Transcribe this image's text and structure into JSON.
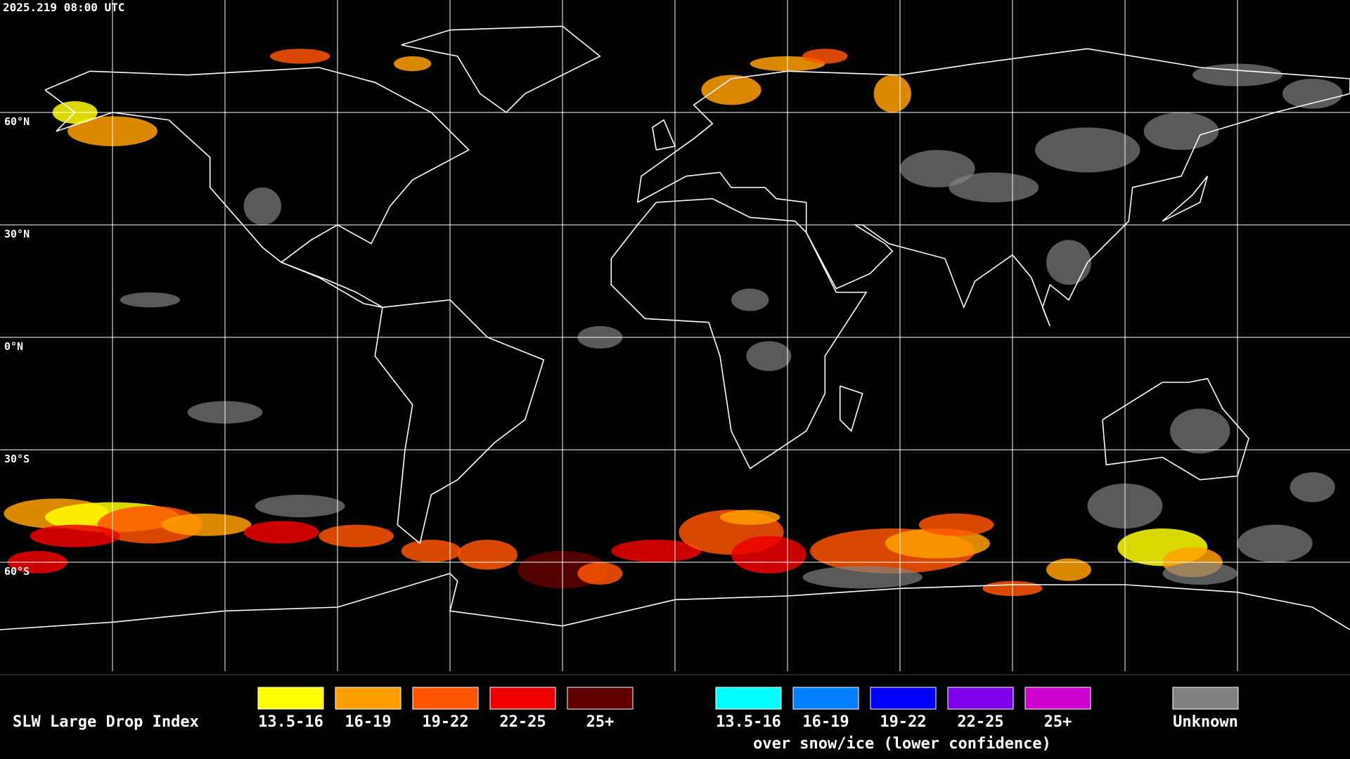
{
  "timestamp": "2025.219 08:00 UTC",
  "latitude_labels": [
    "60°N",
    "30°N",
    "0°N",
    "30°S",
    "60°S"
  ],
  "legend": {
    "title": "SLW Large Drop Index",
    "items": [
      {
        "label": "13.5-16",
        "color": "#ffff00"
      },
      {
        "label": "16-19",
        "color": "#ffa000"
      },
      {
        "label": "19-22",
        "color": "#ff5500"
      },
      {
        "label": "22-25",
        "color": "#ee0000"
      },
      {
        "label": "25+",
        "color": "#600000"
      }
    ],
    "snow_items": [
      {
        "label": "13.5-16",
        "color": "#00ffff"
      },
      {
        "label": "16-19",
        "color": "#0080ff"
      },
      {
        "label": "19-22",
        "color": "#0000ff"
      },
      {
        "label": "22-25",
        "color": "#8000ee"
      },
      {
        "label": "25+",
        "color": "#cc00cc"
      }
    ],
    "snow_caption": "over snow/ice (lower confidence)",
    "unknown": {
      "label": "Unknown",
      "color": "#808080"
    }
  }
}
